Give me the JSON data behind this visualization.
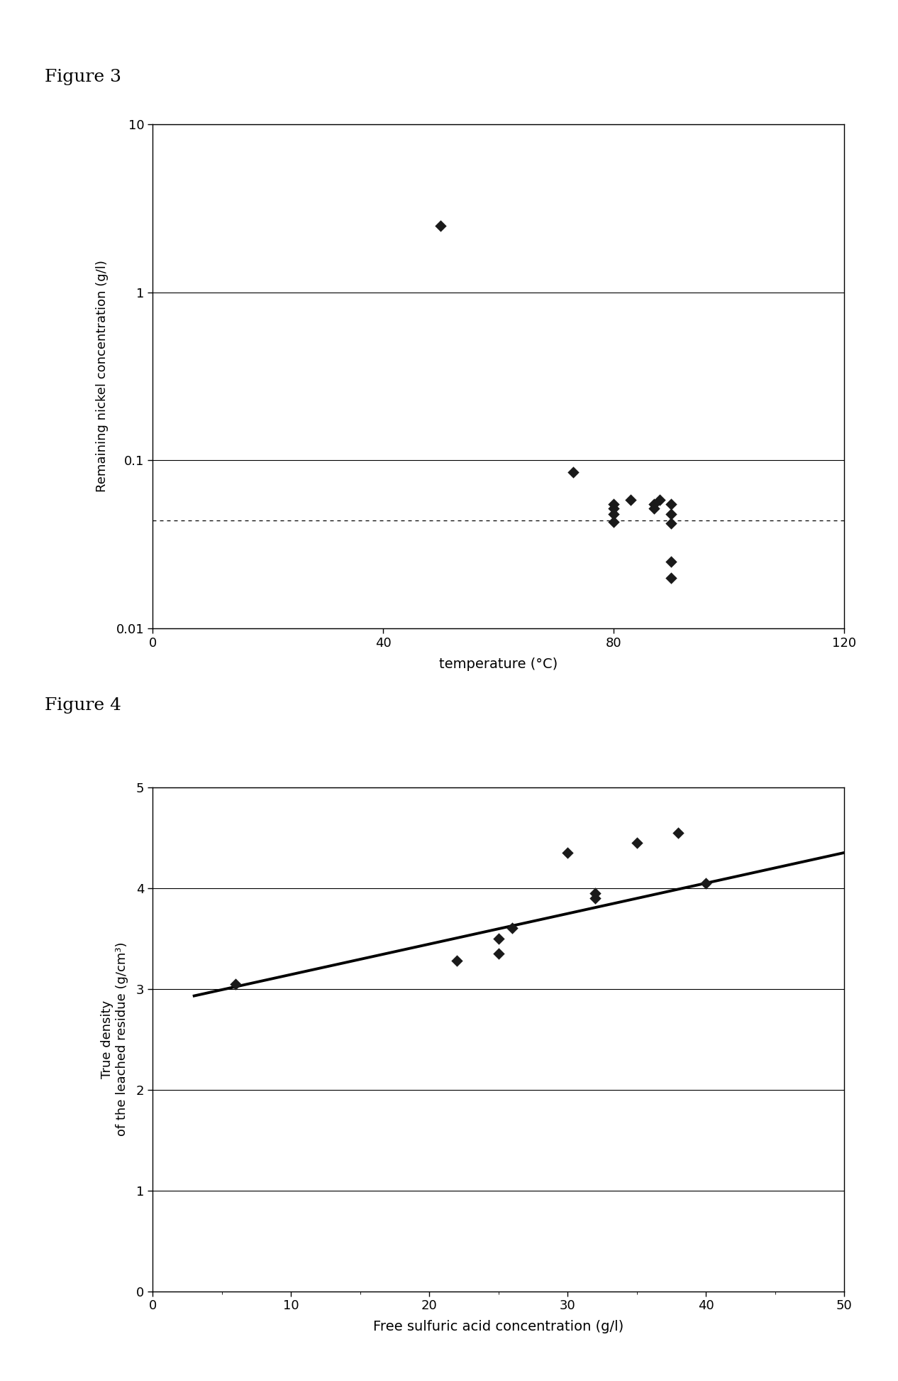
{
  "fig3": {
    "title": "Figure 3",
    "xlabel": "temperature (°C)",
    "ylabel": "Remaining nickel concentration (g/l)",
    "xlim": [
      0,
      120
    ],
    "xticks": [
      0,
      40,
      80,
      120
    ],
    "ylim": [
      0.01,
      10
    ],
    "yticks": [
      0.01,
      0.1,
      1,
      10
    ],
    "dotted_line_y": 0.044,
    "scatter_x": [
      50,
      73,
      80,
      80,
      80,
      80,
      83,
      87,
      87,
      88,
      90,
      90,
      90,
      90,
      90
    ],
    "scatter_y": [
      2.5,
      0.085,
      0.055,
      0.052,
      0.048,
      0.043,
      0.058,
      0.055,
      0.052,
      0.058,
      0.048,
      0.055,
      0.042,
      0.025,
      0.02
    ],
    "marker_color": "#1a1a1a",
    "marker_size": 70
  },
  "fig4": {
    "title": "Figure 4",
    "xlabel": "Free sulfuric acid concentration (g/l)",
    "ylabel_line1": "True density",
    "ylabel_line2": "of the leached residue (g/cm³)",
    "xlim": [
      0,
      50
    ],
    "xticks": [
      0,
      10,
      20,
      30,
      40,
      50
    ],
    "ylim": [
      0,
      5
    ],
    "yticks": [
      0,
      1,
      2,
      3,
      4,
      5
    ],
    "scatter_x": [
      6,
      22,
      25,
      25,
      26,
      30,
      32,
      32,
      35,
      38,
      40
    ],
    "scatter_y": [
      3.05,
      3.28,
      3.35,
      3.5,
      3.6,
      4.35,
      3.9,
      3.95,
      4.45,
      4.55,
      4.05
    ],
    "trendline_x": [
      3,
      50
    ],
    "trendline_y": [
      2.93,
      4.35
    ],
    "marker_color": "#1a1a1a",
    "marker_size": 70,
    "line_color": "#000000",
    "line_width": 2.8
  }
}
